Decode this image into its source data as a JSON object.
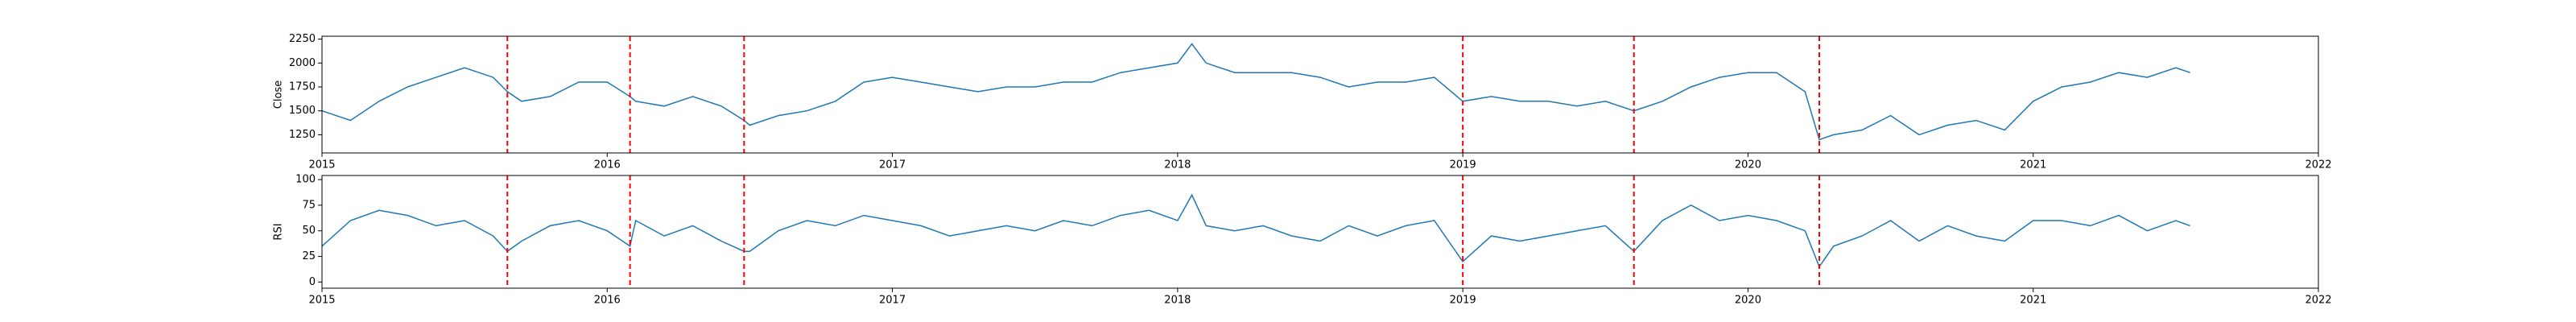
{
  "chart_data": [
    {
      "type": "line",
      "ylabel": "Close",
      "x": [
        2015.0,
        2015.1,
        2015.2,
        2015.3,
        2015.4,
        2015.5,
        2015.6,
        2015.65,
        2015.7,
        2015.8,
        2015.9,
        2016.0,
        2016.08,
        2016.1,
        2016.2,
        2016.3,
        2016.4,
        2016.48,
        2016.5,
        2016.6,
        2016.7,
        2016.8,
        2016.9,
        2017.0,
        2017.1,
        2017.2,
        2017.3,
        2017.4,
        2017.5,
        2017.6,
        2017.7,
        2017.8,
        2017.9,
        2018.0,
        2018.05,
        2018.1,
        2018.2,
        2018.3,
        2018.4,
        2018.5,
        2018.6,
        2018.7,
        2018.8,
        2018.9,
        2019.0,
        2019.1,
        2019.2,
        2019.3,
        2019.4,
        2019.5,
        2019.6,
        2019.7,
        2019.8,
        2019.9,
        2020.0,
        2020.1,
        2020.2,
        2020.25,
        2020.3,
        2020.4,
        2020.5,
        2020.6,
        2020.7,
        2020.8,
        2020.9,
        2021.0,
        2021.1,
        2021.2,
        2021.3,
        2021.4,
        2021.5,
        2021.55
      ],
      "values": [
        1500,
        1400,
        1600,
        1750,
        1850,
        1950,
        1850,
        1700,
        1600,
        1650,
        1800,
        1800,
        1650,
        1600,
        1550,
        1650,
        1550,
        1400,
        1350,
        1450,
        1500,
        1600,
        1800,
        1850,
        1800,
        1750,
        1700,
        1750,
        1750,
        1800,
        1800,
        1900,
        1950,
        2000,
        2200,
        2000,
        1900,
        1900,
        1900,
        1850,
        1750,
        1800,
        1800,
        1850,
        1600,
        1650,
        1600,
        1600,
        1550,
        1600,
        1500,
        1600,
        1750,
        1850,
        1900,
        1900,
        1700,
        1200,
        1250,
        1300,
        1450,
        1250,
        1350,
        1400,
        1300,
        1600,
        1750,
        1800,
        1900,
        1850,
        1950,
        1900
      ],
      "color": "#1f77b4",
      "xlim": [
        2015,
        2022
      ],
      "xticks": [
        2015,
        2016,
        2017,
        2018,
        2019,
        2020,
        2021,
        2022
      ],
      "ylim": [
        1060,
        2280
      ],
      "yticks": [
        1250,
        1500,
        1750,
        2000,
        2250
      ],
      "vlines": [
        2015.65,
        2016.08,
        2016.48,
        2019.0,
        2019.6,
        2020.25
      ],
      "vline_color": "#ff0000"
    },
    {
      "type": "line",
      "ylabel": "RSI",
      "x": [
        2015.0,
        2015.1,
        2015.2,
        2015.3,
        2015.4,
        2015.5,
        2015.6,
        2015.65,
        2015.7,
        2015.8,
        2015.9,
        2016.0,
        2016.08,
        2016.1,
        2016.2,
        2016.3,
        2016.4,
        2016.48,
        2016.5,
        2016.6,
        2016.7,
        2016.8,
        2016.9,
        2017.0,
        2017.1,
        2017.2,
        2017.3,
        2017.4,
        2017.5,
        2017.6,
        2017.7,
        2017.8,
        2017.9,
        2018.0,
        2018.05,
        2018.1,
        2018.2,
        2018.3,
        2018.4,
        2018.5,
        2018.6,
        2018.7,
        2018.8,
        2018.9,
        2019.0,
        2019.1,
        2019.2,
        2019.3,
        2019.4,
        2019.5,
        2019.6,
        2019.7,
        2019.8,
        2019.9,
        2020.0,
        2020.1,
        2020.2,
        2020.25,
        2020.3,
        2020.4,
        2020.5,
        2020.6,
        2020.7,
        2020.8,
        2020.9,
        2021.0,
        2021.1,
        2021.2,
        2021.3,
        2021.4,
        2021.5,
        2021.55
      ],
      "values": [
        35,
        60,
        70,
        65,
        55,
        60,
        45,
        30,
        40,
        55,
        60,
        50,
        35,
        60,
        45,
        55,
        40,
        30,
        30,
        50,
        60,
        55,
        65,
        60,
        55,
        45,
        50,
        55,
        50,
        60,
        55,
        65,
        70,
        60,
        85,
        55,
        50,
        55,
        45,
        40,
        55,
        45,
        55,
        60,
        20,
        45,
        40,
        45,
        50,
        55,
        30,
        60,
        75,
        60,
        65,
        60,
        50,
        15,
        35,
        45,
        60,
        40,
        55,
        45,
        40,
        60,
        60,
        55,
        65,
        50,
        60,
        55
      ],
      "color": "#1f77b4",
      "xlim": [
        2015,
        2022
      ],
      "xticks": [
        2015,
        2016,
        2017,
        2018,
        2019,
        2020,
        2021,
        2022
      ],
      "ylim": [
        -6,
        104
      ],
      "yticks": [
        0,
        25,
        50,
        75,
        100
      ],
      "vlines": [
        2015.65,
        2016.08,
        2016.48,
        2019.0,
        2019.6,
        2020.25
      ],
      "vline_color": "#ff0000"
    }
  ]
}
